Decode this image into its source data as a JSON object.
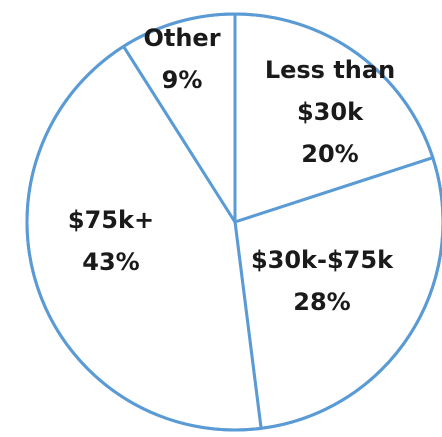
{
  "chart_data": {
    "type": "pie",
    "slices": [
      {
        "label_lines": [
          "Less than",
          "$30k",
          "20%"
        ],
        "value": 20
      },
      {
        "label_lines": [
          "$30k-$75k",
          "28%"
        ],
        "value": 28
      },
      {
        "label_lines": [
          "$75k+",
          "43%"
        ],
        "value": 43
      },
      {
        "label_lines": [
          "Other",
          "9%"
        ],
        "value": 9
      }
    ],
    "start_angle_deg": 0,
    "direction": "clockwise",
    "outline_color": "#5b9bd5",
    "fill_color": "#ffffff"
  }
}
